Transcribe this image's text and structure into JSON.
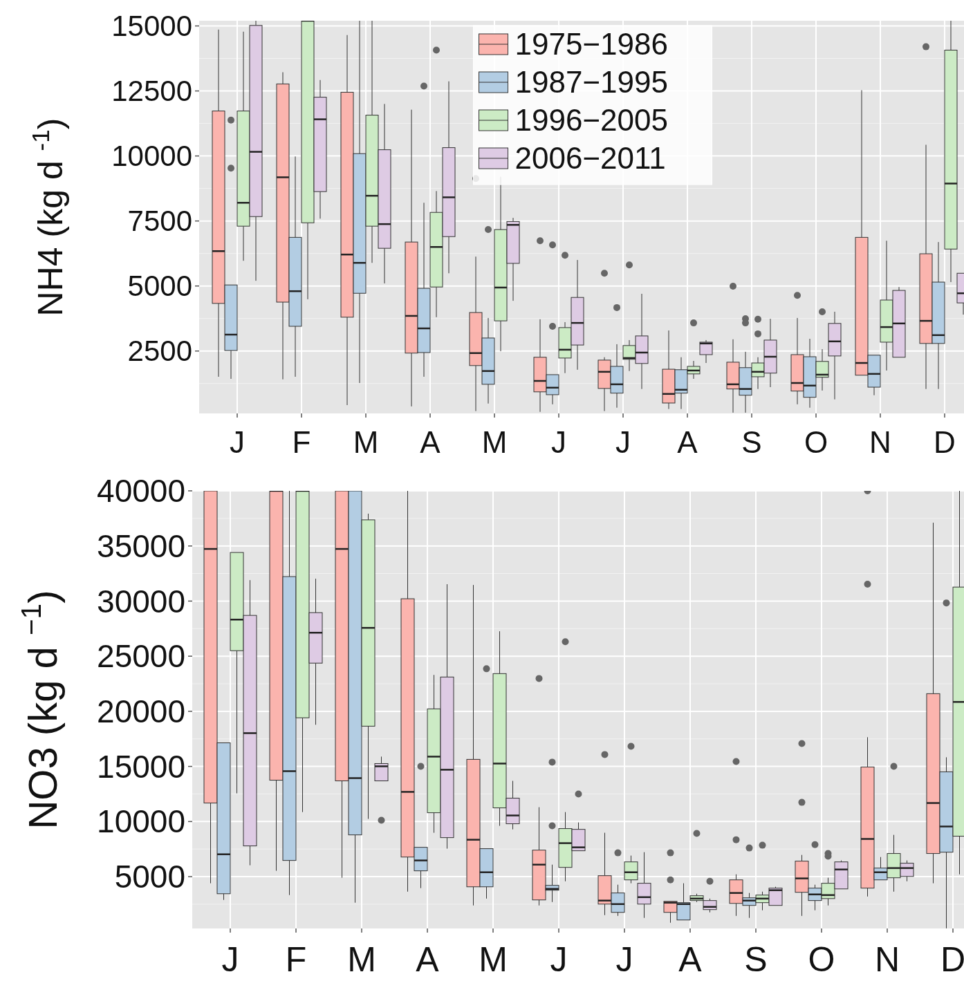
{
  "chart_data": [
    {
      "type": "box",
      "ylabel": "NH4 (kg d $^{-1}$)",
      "categories": [
        "J",
        "F",
        "M",
        "A",
        "M",
        "J",
        "J",
        "A",
        "S",
        "O",
        "N",
        "D"
      ],
      "ylim": [
        100,
        15200
      ],
      "yticks": [
        2500,
        5000,
        7500,
        10000,
        12500,
        15000
      ],
      "grid": true,
      "legend": "top",
      "series": [
        {
          "name": "1975−1986",
          "color": "#fbb4ae",
          "boxes": [
            {
              "low": 1510,
              "q1": 4330,
              "median": 6340,
              "q3": 11730,
              "high": 14860
            },
            {
              "low": 1410,
              "q1": 4380,
              "median": 9180,
              "q3": 12770,
              "high": 13220
            },
            {
              "low": 420,
              "q1": 3800,
              "median": 6210,
              "q3": 12450,
              "high": 14650
            },
            {
              "low": 370,
              "q1": 2420,
              "median": 3850,
              "q3": 6690,
              "high": 11780
            },
            {
              "low": 190,
              "q1": 1940,
              "median": 2420,
              "q3": 3980,
              "high": 6130,
              "outliers": [
                9130
              ]
            },
            {
              "low": 160,
              "q1": 930,
              "median": 1350,
              "q3": 2260,
              "high": 3720,
              "outliers": [
                6740
              ]
            },
            {
              "low": 190,
              "q1": 1060,
              "median": 1700,
              "q3": 2150,
              "high": 2260,
              "outliers": [
                5490
              ]
            },
            {
              "low": 270,
              "q1": 500,
              "median": 850,
              "q3": 1800,
              "high": 3290
            },
            {
              "low": 130,
              "q1": 1040,
              "median": 1220,
              "q3": 2070,
              "high": 2950,
              "outliers": [
                4990
              ]
            },
            {
              "low": 450,
              "q1": 960,
              "median": 1270,
              "q3": 2360,
              "high": 3770,
              "outliers": [
                4640
              ]
            },
            {
              "low": 1570,
              "q1": 1570,
              "median": 2040,
              "q3": 6870,
              "high": 12530
            },
            {
              "low": 1040,
              "q1": 2790,
              "median": 3660,
              "q3": 6240,
              "high": 10430,
              "outliers": [
                14200
              ]
            }
          ]
        },
        {
          "name": "1987−1995",
          "color": "#b3cde3",
          "boxes": [
            {
              "low": 1430,
              "q1": 2520,
              "median": 3130,
              "q3": 5040,
              "high": 5040,
              "outliers": [
                11380,
                9530
              ]
            },
            {
              "low": 1510,
              "q1": 3450,
              "median": 4800,
              "q3": 6870,
              "high": 9980
            },
            {
              "low": 1270,
              "q1": 4720,
              "median": 5890,
              "q3": 10090,
              "high": 15200
            },
            {
              "low": 1510,
              "q1": 2440,
              "median": 3370,
              "q3": 4910,
              "high": 8200,
              "outliers": [
                12690
              ]
            },
            {
              "low": 480,
              "q1": 1220,
              "median": 1730,
              "q3": 3000,
              "high": 3770,
              "outliers": [
                7170
              ]
            },
            {
              "low": 450,
              "q1": 820,
              "median": 1090,
              "q3": 1590,
              "high": 1590,
              "outliers": [
                6580,
                3450
              ]
            },
            {
              "low": 320,
              "q1": 880,
              "median": 1220,
              "q3": 1910,
              "high": 2760,
              "outliers": [
                4170
              ]
            },
            {
              "low": 270,
              "q1": 880,
              "median": 1010,
              "q3": 1780,
              "high": 2260
            },
            {
              "low": 130,
              "q1": 800,
              "median": 1040,
              "q3": 1860,
              "high": 2470,
              "outliers": [
                3740,
                3580
              ]
            },
            {
              "low": 320,
              "q1": 720,
              "median": 1170,
              "q3": 2280,
              "high": 2970
            },
            {
              "low": 800,
              "q1": 1110,
              "median": 1620,
              "q3": 2340,
              "high": 2340
            },
            {
              "low": 1040,
              "q1": 2790,
              "median": 3110,
              "q3": 5150,
              "high": 6690
            }
          ]
        },
        {
          "name": "1996−2005",
          "color": "#ccebc5",
          "boxes": [
            {
              "low": 5970,
              "q1": 7300,
              "median": 8200,
              "q3": 11730,
              "high": 14780
            },
            {
              "low": 4490,
              "q1": 7430,
              "median": 15200,
              "q3": 15200,
              "high": 15200
            },
            {
              "low": 5890,
              "q1": 7300,
              "median": 8470,
              "q3": 11570,
              "high": 15200
            },
            {
              "low": 3800,
              "q1": 4960,
              "median": 6500,
              "q3": 7830,
              "high": 8650,
              "outliers": [
                14070
              ]
            },
            {
              "low": 2490,
              "q1": 3660,
              "median": 4940,
              "q3": 7170,
              "high": 9200
            },
            {
              "low": 1650,
              "q1": 2230,
              "median": 2550,
              "q3": 3400,
              "high": 3610,
              "outliers": [
                6180
              ]
            },
            {
              "low": 1730,
              "q1": 2180,
              "median": 2230,
              "q3": 2710,
              "high": 2920,
              "outliers": [
                5810
              ]
            },
            {
              "low": 1430,
              "q1": 1620,
              "median": 1750,
              "q3": 1910,
              "high": 2120,
              "outliers": [
                3580
              ]
            },
            {
              "low": 1040,
              "q1": 1510,
              "median": 1700,
              "q3": 2040,
              "high": 2260,
              "outliers": [
                3720,
                3160
              ]
            },
            {
              "low": 980,
              "q1": 1490,
              "median": 1590,
              "q3": 2100,
              "high": 2570,
              "outliers": [
                4010
              ]
            },
            {
              "low": 1750,
              "q1": 2840,
              "median": 3420,
              "q3": 4460,
              "high": 6740
            },
            {
              "low": 5150,
              "q1": 6420,
              "median": 8940,
              "q3": 14070,
              "high": 15200
            }
          ]
        },
        {
          "name": "2006−2011",
          "color": "#decbe4",
          "boxes": [
            {
              "low": 5200,
              "q1": 7670,
              "median": 10160,
              "q3": 15020,
              "high": 15200
            },
            {
              "low": 7590,
              "q1": 8630,
              "median": 11410,
              "q3": 12260,
              "high": 12920
            },
            {
              "low": 5100,
              "q1": 6450,
              "median": 7380,
              "q3": 10240,
              "high": 12000
            },
            {
              "low": 5490,
              "q1": 6900,
              "median": 8410,
              "q3": 10320,
              "high": 12870
            },
            {
              "low": 4430,
              "q1": 5870,
              "median": 7350,
              "q3": 7480,
              "high": 7620
            },
            {
              "low": 1780,
              "q1": 2730,
              "median": 3580,
              "q3": 4560,
              "high": 6000
            },
            {
              "low": 1040,
              "q1": 2020,
              "median": 2440,
              "q3": 3080,
              "high": 4700
            },
            {
              "low": 2040,
              "q1": 2360,
              "median": 2790,
              "q3": 2840,
              "high": 2920
            },
            {
              "low": 1110,
              "q1": 1650,
              "median": 2280,
              "q3": 2920,
              "high": 3740
            },
            {
              "low": 640,
              "q1": 2310,
              "median": 2870,
              "q3": 3560,
              "high": 4010
            },
            {
              "low": 2260,
              "q1": 2260,
              "median": 3560,
              "q3": 4830,
              "high": 4960
            },
            {
              "low": 3900,
              "q1": 4350,
              "median": 4720,
              "q3": 5490,
              "high": 5490
            }
          ]
        }
      ]
    },
    {
      "type": "box",
      "ylabel": "NO3 (kg d $^{−1}$)",
      "categories": [
        "J",
        "F",
        "M",
        "A",
        "M",
        "J",
        "J",
        "A",
        "S",
        "O",
        "N",
        "D"
      ],
      "ylim": [
        300,
        40000
      ],
      "yticks": [
        5000,
        10000,
        15000,
        20000,
        25000,
        30000,
        35000,
        40000
      ],
      "grid": true,
      "series": [
        {
          "color": "#fbb4ae",
          "boxes": [
            {
              "low": 4400,
              "q1": 11680,
              "median": 34730,
              "q3": 40000,
              "high": 40000
            },
            {
              "low": 5530,
              "q1": 13750,
              "median": 40000,
              "q3": 40000,
              "high": 40000
            },
            {
              "low": 4900,
              "q1": 13690,
              "median": 34730,
              "q3": 40000,
              "high": 40000
            },
            {
              "low": 3640,
              "q1": 6780,
              "median": 12690,
              "q3": 30210,
              "high": 40000
            },
            {
              "low": 2390,
              "q1": 4080,
              "median": 8350,
              "q3": 15640,
              "high": 31460
            },
            {
              "low": 2390,
              "q1": 2890,
              "median": 6090,
              "q3": 7410,
              "high": 11300,
              "outliers": [
                22980
              ]
            },
            {
              "low": 1510,
              "q1": 2510,
              "median": 2830,
              "q3": 5090,
              "high": 8980,
              "outliers": [
                16080
              ]
            },
            {
              "low": 820,
              "q1": 1760,
              "median": 2640,
              "q3": 2760,
              "high": 2760,
              "outliers": [
                7160,
                4710
              ]
            },
            {
              "low": 1440,
              "q1": 2570,
              "median": 3520,
              "q3": 4710,
              "high": 5210,
              "outliers": [
                15450,
                8350
              ]
            },
            {
              "low": 1440,
              "q1": 3580,
              "median": 4840,
              "q3": 6410,
              "high": 6970,
              "outliers": [
                17080,
                11740
              ]
            },
            {
              "low": 3200,
              "q1": 3960,
              "median": 8420,
              "q3": 14950,
              "high": 17650,
              "outliers": [
                40000,
                31530
              ]
            },
            {
              "low": 4400,
              "q1": 7100,
              "median": 11680,
              "q3": 21600,
              "high": 37110
            }
          ]
        },
        {
          "color": "#b3cde3",
          "boxes": [
            {
              "low": 2890,
              "q1": 3450,
              "median": 7030,
              "q3": 17140,
              "high": 17140
            },
            {
              "low": 3330,
              "q1": 6470,
              "median": 14570,
              "q3": 32220,
              "high": 40000
            },
            {
              "low": 2640,
              "q1": 8790,
              "median": 13940,
              "q3": 40000,
              "high": 40000
            },
            {
              "low": 3960,
              "q1": 5530,
              "median": 6470,
              "q3": 7660,
              "high": 7660,
              "outliers": [
                15010
              ]
            },
            {
              "low": 3010,
              "q1": 4080,
              "median": 5400,
              "q3": 7540,
              "high": 7540,
              "outliers": [
                23860
              ]
            },
            {
              "low": 2700,
              "q1": 3770,
              "median": 3890,
              "q3": 4210,
              "high": 6090,
              "outliers": [
                15390,
                9610
              ]
            },
            {
              "low": 1440,
              "q1": 1760,
              "median": 2510,
              "q3": 3520,
              "high": 4270,
              "outliers": [
                7160
              ]
            },
            {
              "low": 1070,
              "q1": 1070,
              "median": 2510,
              "q3": 2640,
              "high": 4400
            },
            {
              "low": 1260,
              "q1": 2390,
              "median": 2830,
              "q3": 3080,
              "high": 3520,
              "outliers": [
                7600
              ]
            },
            {
              "low": 1950,
              "q1": 2830,
              "median": 3390,
              "q3": 3960,
              "high": 4270,
              "outliers": [
                7910
              ]
            },
            {
              "low": 4710,
              "q1": 4710,
              "median": 5400,
              "q3": 5780,
              "high": 6780
            },
            {
              "low": 310,
              "q1": 7220,
              "median": 9550,
              "q3": 14510,
              "high": 15830,
              "outliers": [
                29830
              ]
            }
          ]
        },
        {
          "color": "#ccebc5",
          "boxes": [
            {
              "low": 12560,
              "q1": 25500,
              "median": 28320,
              "q3": 34410,
              "high": 34410
            },
            {
              "low": 10860,
              "q1": 19410,
              "median": 40000,
              "q3": 40000,
              "high": 40000
            },
            {
              "low": 10240,
              "q1": 18650,
              "median": 27570,
              "q3": 37370,
              "high": 37930
            },
            {
              "low": 8980,
              "q1": 10800,
              "median": 15890,
              "q3": 20220,
              "high": 23300
            },
            {
              "low": 9610,
              "q1": 11240,
              "median": 15260,
              "q3": 23420,
              "high": 27260
            },
            {
              "low": 4580,
              "q1": 5840,
              "median": 8040,
              "q3": 9360,
              "high": 10860,
              "outliers": [
                26310
              ]
            },
            {
              "low": 4400,
              "q1": 4710,
              "median": 5400,
              "q3": 6340,
              "high": 6910,
              "outliers": [
                16830
              ]
            },
            {
              "low": 2700,
              "q1": 2830,
              "median": 3010,
              "q3": 3270,
              "high": 3450,
              "outliers": [
                8920
              ]
            },
            {
              "low": 1950,
              "q1": 2640,
              "median": 3010,
              "q3": 3330,
              "high": 3640,
              "outliers": [
                7850
              ]
            },
            {
              "low": 2390,
              "q1": 3010,
              "median": 3330,
              "q3": 4400,
              "high": 4900,
              "outliers": [
                7100,
                6850
              ]
            },
            {
              "low": 3640,
              "q1": 4900,
              "median": 5780,
              "q3": 7100,
              "high": 8790,
              "outliers": [
                15010
              ]
            },
            {
              "low": 5210,
              "q1": 8670,
              "median": 20850,
              "q3": 31270,
              "high": 40000
            }
          ]
        },
        {
          "color": "#decbe4",
          "boxes": [
            {
              "low": 6030,
              "q1": 7790,
              "median": 18020,
              "q3": 28700,
              "high": 31900
            },
            {
              "low": 18780,
              "q1": 24370,
              "median": 27130,
              "q3": 28950,
              "high": 32030
            },
            {
              "low": 13690,
              "q1": 13690,
              "median": 15010,
              "q3": 15260,
              "high": 15890,
              "outliers": [
                10110
              ]
            },
            {
              "low": 7540,
              "q1": 8540,
              "median": 14700,
              "q3": 23110,
              "high": 31530
            },
            {
              "low": 9290,
              "q1": 9800,
              "median": 10550,
              "q3": 12120,
              "high": 13690
            },
            {
              "low": 7350,
              "q1": 7350,
              "median": 7660,
              "q3": 9290,
              "high": 9920,
              "outliers": [
                12500
              ]
            },
            {
              "low": 1260,
              "q1": 2510,
              "median": 3140,
              "q3": 4400,
              "high": 7220
            },
            {
              "low": 1760,
              "q1": 2010,
              "median": 2260,
              "q3": 2830,
              "high": 3010,
              "outliers": [
                4580
              ]
            },
            {
              "low": 2390,
              "q1": 2390,
              "median": 3770,
              "q3": 3960,
              "high": 4080
            },
            {
              "low": 3890,
              "q1": 3890,
              "median": 5650,
              "q3": 6340,
              "high": 6470
            },
            {
              "low": 4580,
              "q1": 5020,
              "median": 5780,
              "q3": 6220,
              "high": 6470
            },
            null
          ]
        }
      ]
    }
  ]
}
